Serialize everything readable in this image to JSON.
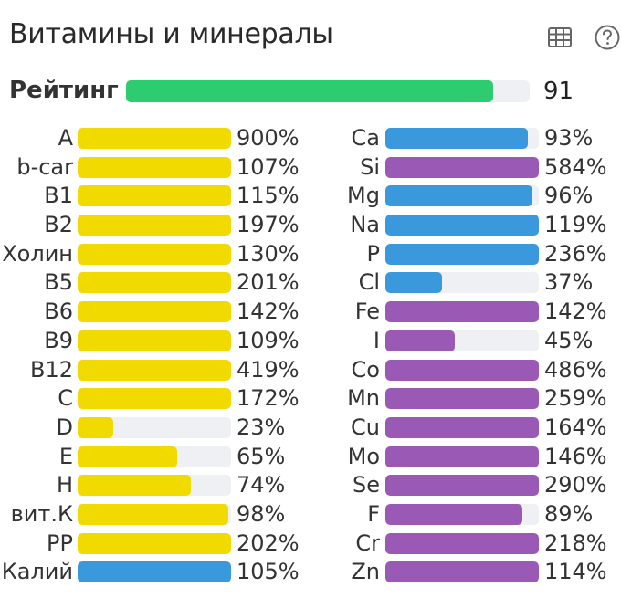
{
  "header": {
    "title": "Витамины и минералы",
    "icons": [
      "table-icon",
      "help-icon"
    ]
  },
  "rating": {
    "label": "Рейтинг",
    "value": "91",
    "fill": 0.91
  },
  "colors": {
    "yellow": "#f1da00",
    "blue": "#3a98dc",
    "purple": "#9b59b6",
    "green": "#2ecc71",
    "track": "#eef0f3"
  },
  "vitamins": [
    {
      "label": "A",
      "pct": "900%",
      "fill": 1.0,
      "color": "#f1da00"
    },
    {
      "label": "b-car",
      "pct": "107%",
      "fill": 1.0,
      "color": "#f1da00"
    },
    {
      "label": "B1",
      "pct": "115%",
      "fill": 1.0,
      "color": "#f1da00"
    },
    {
      "label": "B2",
      "pct": "197%",
      "fill": 1.0,
      "color": "#f1da00"
    },
    {
      "label": "Холин",
      "pct": "130%",
      "fill": 1.0,
      "color": "#f1da00"
    },
    {
      "label": "B5",
      "pct": "201%",
      "fill": 1.0,
      "color": "#f1da00"
    },
    {
      "label": "B6",
      "pct": "142%",
      "fill": 1.0,
      "color": "#f1da00"
    },
    {
      "label": "B9",
      "pct": "109%",
      "fill": 1.0,
      "color": "#f1da00"
    },
    {
      "label": "B12",
      "pct": "419%",
      "fill": 1.0,
      "color": "#f1da00"
    },
    {
      "label": "C",
      "pct": "172%",
      "fill": 1.0,
      "color": "#f1da00"
    },
    {
      "label": "D",
      "pct": "23%",
      "fill": 0.23,
      "color": "#f1da00"
    },
    {
      "label": "E",
      "pct": "65%",
      "fill": 0.65,
      "color": "#f1da00"
    },
    {
      "label": "H",
      "pct": "74%",
      "fill": 0.74,
      "color": "#f1da00"
    },
    {
      "label": "вит.К",
      "pct": "98%",
      "fill": 0.98,
      "color": "#f1da00"
    },
    {
      "label": "PP",
      "pct": "202%",
      "fill": 1.0,
      "color": "#f1da00"
    },
    {
      "label": "Калий",
      "pct": "105%",
      "fill": 1.0,
      "color": "#3a98dc"
    }
  ],
  "minerals": [
    {
      "label": "Ca",
      "pct": "93%",
      "fill": 0.93,
      "color": "#3a98dc"
    },
    {
      "label": "Si",
      "pct": "584%",
      "fill": 1.0,
      "color": "#9b59b6"
    },
    {
      "label": "Mg",
      "pct": "96%",
      "fill": 0.96,
      "color": "#3a98dc"
    },
    {
      "label": "Na",
      "pct": "119%",
      "fill": 1.0,
      "color": "#3a98dc"
    },
    {
      "label": "P",
      "pct": "236%",
      "fill": 1.0,
      "color": "#3a98dc"
    },
    {
      "label": "Cl",
      "pct": "37%",
      "fill": 0.37,
      "color": "#3a98dc"
    },
    {
      "label": "Fe",
      "pct": "142%",
      "fill": 1.0,
      "color": "#9b59b6"
    },
    {
      "label": "I",
      "pct": "45%",
      "fill": 0.45,
      "color": "#9b59b6"
    },
    {
      "label": "Co",
      "pct": "486%",
      "fill": 1.0,
      "color": "#9b59b6"
    },
    {
      "label": "Mn",
      "pct": "259%",
      "fill": 1.0,
      "color": "#9b59b6"
    },
    {
      "label": "Cu",
      "pct": "164%",
      "fill": 1.0,
      "color": "#9b59b6"
    },
    {
      "label": "Mo",
      "pct": "146%",
      "fill": 1.0,
      "color": "#9b59b6"
    },
    {
      "label": "Se",
      "pct": "290%",
      "fill": 1.0,
      "color": "#9b59b6"
    },
    {
      "label": "F",
      "pct": "89%",
      "fill": 0.89,
      "color": "#9b59b6"
    },
    {
      "label": "Cr",
      "pct": "218%",
      "fill": 1.0,
      "color": "#9b59b6"
    },
    {
      "label": "Zn",
      "pct": "114%",
      "fill": 1.0,
      "color": "#9b59b6"
    }
  ]
}
